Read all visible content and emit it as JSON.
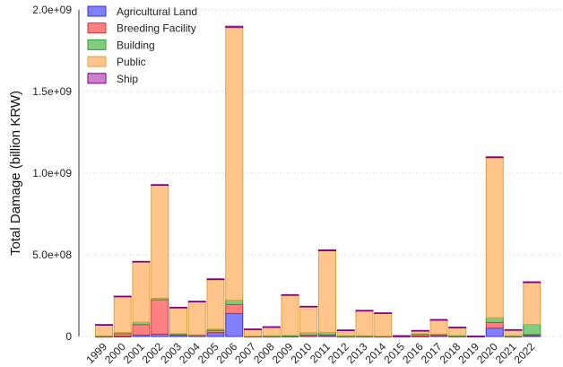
{
  "chart_data": {
    "type": "bar",
    "stacked": true,
    "title": "",
    "xlabel": "",
    "ylabel": "Total Damage (billion KRW)",
    "ylim": [
      0,
      2000000000
    ],
    "yticks": [
      0,
      500000000,
      1000000000,
      1500000000,
      2000000000
    ],
    "ytick_labels": [
      "0",
      "5.0e+08",
      "1.0e+09",
      "1.5e+09",
      "2.0e+09"
    ],
    "grid": "horizontal dotted",
    "legend_position": "top-left",
    "categories": [
      "1999",
      "2000",
      "2001",
      "2002",
      "2003",
      "2004",
      "2005",
      "2006",
      "2007",
      "2008",
      "2009",
      "2010",
      "2011",
      "2012",
      "2013",
      "2014",
      "2015",
      "2016",
      "2017",
      "2018",
      "2019",
      "2020",
      "2021",
      "2022"
    ],
    "series": [
      {
        "name": "Agricultural Land",
        "color": "#8080ff",
        "edge": "#3333cc",
        "values": [
          1000000,
          2000000,
          9000000,
          15000000,
          10000000,
          8000000,
          24000000,
          141000000,
          1000000,
          1000000,
          2000000,
          5000000,
          7000000,
          1000000,
          1000000,
          1000000,
          1000000,
          3000000,
          8000000,
          2000000,
          0,
          51000000,
          1000000,
          6000000
        ]
      },
      {
        "name": "Breeding Facility",
        "color": "#ff8080",
        "edge": "#cc3333",
        "values": [
          0,
          15000000,
          64000000,
          210000000,
          2000000,
          1000000,
          13000000,
          55000000,
          0,
          1000000,
          2000000,
          3000000,
          3000000,
          1000000,
          1000000,
          0,
          1000000,
          10000000,
          2000000,
          1000000,
          0,
          35000000,
          1000000,
          6000000
        ]
      },
      {
        "name": "Building",
        "color": "#80cc80",
        "edge": "#339933",
        "values": [
          3000000,
          8000000,
          15000000,
          9000000,
          5000000,
          2000000,
          9000000,
          27000000,
          2000000,
          3000000,
          3000000,
          15000000,
          15000000,
          3000000,
          3000000,
          2000000,
          1000000,
          4000000,
          5000000,
          3000000,
          1000000,
          29000000,
          3000000,
          62000000
        ]
      },
      {
        "name": "Public",
        "color": "#ffc58a",
        "edge": "#e0a040",
        "values": [
          66000000,
          218000000,
          369000000,
          692000000,
          159000000,
          202000000,
          302000000,
          1669000000,
          41000000,
          52000000,
          246000000,
          159000000,
          500000000,
          32000000,
          152000000,
          139000000,
          1000000,
          17000000,
          86000000,
          48000000,
          1000000,
          980000000,
          34000000,
          256000000
        ]
      },
      {
        "name": "Ship",
        "color": "#cc80cc",
        "edge": "#800080",
        "values": [
          3000000,
          4000000,
          3000000,
          4000000,
          3000000,
          3000000,
          5000000,
          8000000,
          2000000,
          3000000,
          3000000,
          3000000,
          5000000,
          3000000,
          3000000,
          3000000,
          1000000,
          3000000,
          3000000,
          3000000,
          1000000,
          5000000,
          3000000,
          5000000
        ]
      }
    ]
  }
}
